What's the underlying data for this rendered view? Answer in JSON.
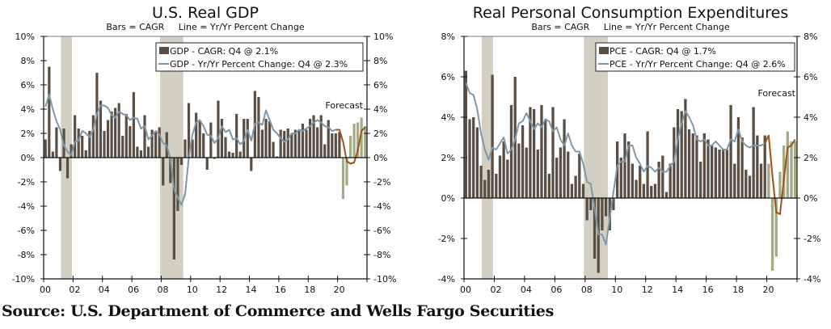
{
  "source": "Source: U.S. Department of Commerce and Wells Fargo Securities",
  "colors": {
    "bar_actual": "#5a4d42",
    "bar_forecast": "#a4ab84",
    "line_actual": "#7f98a8",
    "line_forecast": "#a0521a",
    "recession": "#d3cfc3",
    "axis": "#111111"
  },
  "chart_data": [
    {
      "id": "gdp",
      "type": "bar+line",
      "title": "U.S. Real GDP",
      "subtitle": "Bars = CAGR     Line = Yr/Yr Percent Change",
      "xlabel": "",
      "ylabel": "",
      "ylim": [
        -10,
        10
      ],
      "yticks": [
        -10,
        -8,
        -6,
        -4,
        -2,
        0,
        2,
        4,
        6,
        8,
        10
      ],
      "ytick_labels": [
        "-10%",
        "-8%",
        "-6%",
        "-4%",
        "-2%",
        "0%",
        "2%",
        "4%",
        "6%",
        "8%",
        "10%"
      ],
      "xrange": [
        "2000Q1",
        "2021Q4"
      ],
      "xtick_labels": [
        "00",
        "02",
        "04",
        "06",
        "08",
        "10",
        "12",
        "14",
        "16",
        "18",
        "20"
      ],
      "legend": [
        {
          "name": "GDP - CAGR: Q4 @ 2.1%",
          "kind": "bar"
        },
        {
          "name": "GDP - Yr/Yr Percent Change: Q4 @ 2.3%",
          "kind": "line"
        }
      ],
      "legend_position": "top-right",
      "annotation": "Forecast",
      "forecast_start_index": 80,
      "recessions": [
        [
          2001.17,
          2001.92
        ],
        [
          2007.92,
          2009.5
        ]
      ],
      "series": [
        {
          "name": "GDP - CAGR",
          "kind": "bar",
          "values": [
            1.5,
            7.5,
            0.5,
            2.5,
            -1.1,
            2.4,
            -1.7,
            1.1,
            3.5,
            2.4,
            1.8,
            0.6,
            2.2,
            3.5,
            7.0,
            4.7,
            2.2,
            3.1,
            3.8,
            4.1,
            4.5,
            1.8,
            3.6,
            2.6,
            5.4,
            0.9,
            0.6,
            3.5,
            0.9,
            2.3,
            2.2,
            2.5,
            -2.3,
            2.1,
            -2.1,
            -8.4,
            -4.4,
            -0.6,
            1.5,
            4.5,
            1.5,
            3.7,
            3.0,
            2.0,
            -1.0,
            2.9,
            -0.1,
            4.7,
            3.2,
            1.7,
            0.5,
            0.4,
            3.6,
            0.5,
            3.2,
            3.2,
            -1.1,
            5.5,
            5.0,
            2.3,
            3.2,
            3.0,
            1.3,
            0.1,
            2.3,
            2.2,
            2.4,
            2.0,
            2.3,
            2.2,
            2.8,
            2.3,
            3.2,
            3.5,
            2.5,
            3.5,
            1.1,
            3.1,
            2.0,
            2.0,
            2.1,
            -3.4,
            -2.3,
            1.8,
            2.8,
            2.9,
            3.3,
            2.6
          ],
          "forecast_from": 81
        },
        {
          "name": "GDP - Yr/Yr Percent Change",
          "kind": "line",
          "values": [
            4.2,
            5.2,
            4.0,
            3.0,
            2.3,
            1.0,
            0.5,
            0.2,
            1.3,
            1.4,
            2.2,
            2.0,
            1.7,
            2.3,
            3.6,
            4.3,
            4.3,
            4.1,
            3.5,
            3.3,
            3.8,
            3.6,
            3.5,
            3.1,
            3.3,
            3.2,
            2.4,
            2.6,
            1.5,
            1.8,
            2.2,
            1.9,
            1.2,
            1.0,
            -0.1,
            -2.6,
            -3.3,
            -3.9,
            -3.0,
            0.0,
            1.9,
            2.9,
            3.1,
            2.6,
            1.9,
            1.8,
            1.2,
            1.6,
            2.6,
            2.1,
            2.3,
            1.5,
            1.6,
            1.1,
            1.4,
            2.3,
            1.4,
            2.8,
            2.9,
            2.7,
            3.9,
            3.1,
            2.3,
            2.0,
            1.6,
            1.3,
            1.5,
            2.0,
            2.0,
            2.3,
            2.2,
            2.4,
            2.6,
            2.9,
            3.1,
            2.9,
            2.6,
            2.5,
            2.2,
            2.3,
            2.3,
            1.3,
            -0.3,
            -0.5,
            -0.4,
            0.6,
            2.2,
            2.5
          ],
          "forecast_from": 79
        }
      ]
    },
    {
      "id": "pce",
      "type": "bar+line",
      "title": "Real Personal Consumption Expenditures",
      "subtitle": "Bars = CAGR     Line = Yr/Yr Percent Change",
      "xlabel": "",
      "ylabel": "",
      "ylim": [
        -4,
        8
      ],
      "yticks": [
        -4,
        -2,
        0,
        2,
        4,
        6,
        8
      ],
      "ytick_labels": [
        "-4%",
        "-2%",
        "0%",
        "2%",
        "4%",
        "6%",
        "8%"
      ],
      "xrange": [
        "2000Q1",
        "2021Q4"
      ],
      "xtick_labels": [
        "00",
        "02",
        "04",
        "06",
        "08",
        "10",
        "12",
        "14",
        "16",
        "18",
        "20"
      ],
      "legend": [
        {
          "name": "PCE - CAGR: Q4 @ 1.7%",
          "kind": "bar"
        },
        {
          "name": "PCE - Yr/Yr Percent Change: Q4 @ 2.6%",
          "kind": "line"
        }
      ],
      "legend_position": "top-right",
      "annotation": "Forecast",
      "forecast_start_index": 80,
      "recessions": [
        [
          2001.17,
          2001.92
        ],
        [
          2007.92,
          2009.5
        ]
      ],
      "series": [
        {
          "name": "PCE - CAGR",
          "kind": "bar",
          "values": [
            6.3,
            3.9,
            4.0,
            3.5,
            1.6,
            0.9,
            1.4,
            6.1,
            1.2,
            2.1,
            2.8,
            1.9,
            4.6,
            6.0,
            2.7,
            3.6,
            2.5,
            4.5,
            4.4,
            2.4,
            4.6,
            3.9,
            1.2,
            4.5,
            2.0,
            2.5,
            3.9,
            2.3,
            0.7,
            1.1,
            2.2,
            0.7,
            -1.1,
            -0.6,
            -3.0,
            -3.7,
            -1.6,
            -0.9,
            -1.6,
            -0.6,
            2.8,
            2.0,
            3.2,
            2.8,
            1.7,
            0.9,
            1.6,
            0.7,
            3.3,
            0.6,
            0.7,
            1.8,
            2.1,
            0.3,
            1.7,
            3.5,
            4.4,
            4.3,
            4.9,
            3.4,
            3.2,
            3.1,
            1.8,
            3.2,
            2.9,
            2.6,
            2.5,
            2.4,
            2.4,
            2.4,
            4.6,
            1.7,
            4.0,
            3.0,
            1.4,
            1.1,
            4.5,
            3.1,
            1.7,
            3.1,
            1.7,
            -3.6,
            -2.9,
            1.3,
            2.6,
            3.3,
            2.8,
            2.8
          ],
          "forecast_from": 80
        },
        {
          "name": "PCE - Yr/Yr Percent Change",
          "kind": "line",
          "values": [
            5.7,
            5.2,
            5.1,
            4.4,
            3.2,
            2.4,
            1.9,
            2.5,
            2.4,
            2.7,
            3.0,
            2.2,
            2.4,
            2.9,
            3.7,
            3.8,
            4.2,
            3.8,
            3.4,
            3.7,
            3.5,
            3.9,
            3.8,
            3.3,
            3.5,
            2.9,
            2.6,
            3.2,
            2.6,
            2.3,
            2.3,
            1.7,
            0.8,
            0.7,
            -0.5,
            -1.8,
            -1.8,
            -2.3,
            -1.0,
            0.3,
            1.6,
            1.8,
            1.8,
            2.6,
            2.6,
            2.0,
            1.7,
            1.3,
            1.6,
            1.5,
            1.3,
            1.5,
            1.3,
            1.3,
            1.6,
            1.8,
            2.9,
            3.7,
            4.3,
            4.0,
            3.6,
            2.9,
            2.8,
            2.9,
            2.6,
            2.6,
            2.8,
            2.6,
            2.4,
            2.4,
            2.9,
            2.8,
            3.4,
            2.8,
            2.6,
            2.5,
            2.6,
            2.6,
            2.6,
            2.7,
            3.1,
            1.1,
            -0.7,
            -0.8,
            0.9,
            2.5,
            2.6,
            2.9
          ],
          "forecast_from": 79
        }
      ]
    }
  ]
}
